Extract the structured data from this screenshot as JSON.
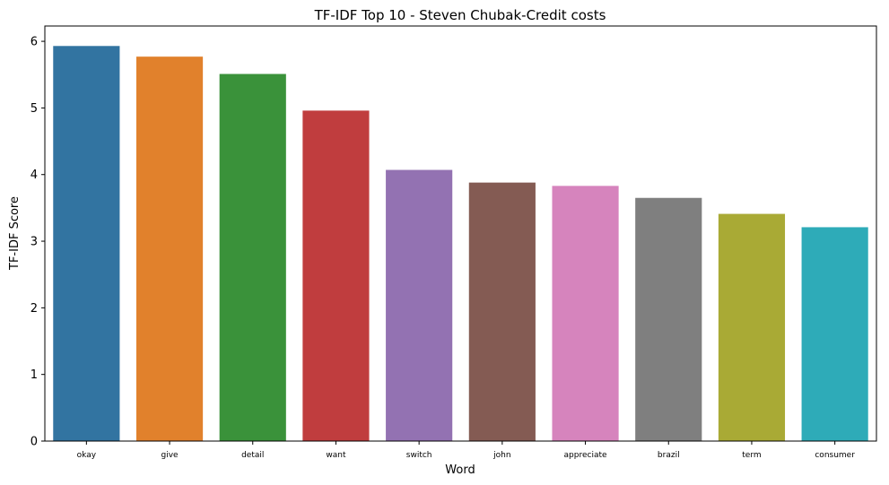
{
  "chart_data": {
    "type": "bar",
    "title": "TF-IDF Top 10 - Steven Chubak-Credit costs",
    "xlabel": "Word",
    "ylabel": "TF-IDF Score",
    "categories": [
      "okay",
      "give",
      "detail",
      "want",
      "switch",
      "john",
      "appreciate",
      "brazil",
      "term",
      "consumer"
    ],
    "values": [
      5.93,
      5.77,
      5.51,
      4.96,
      4.07,
      3.88,
      3.83,
      3.65,
      3.41,
      3.21
    ],
    "colors": [
      "#3274a1",
      "#e1812c",
      "#3a923a",
      "#c03d3e",
      "#9372b2",
      "#845b53",
      "#d684bd",
      "#7f7f7f",
      "#a9aa35",
      "#2eabb8"
    ],
    "ylim": [
      0,
      6.23
    ],
    "yticks": [
      0,
      1,
      2,
      3,
      4,
      5,
      6
    ],
    "grid": false,
    "legend": "none"
  }
}
